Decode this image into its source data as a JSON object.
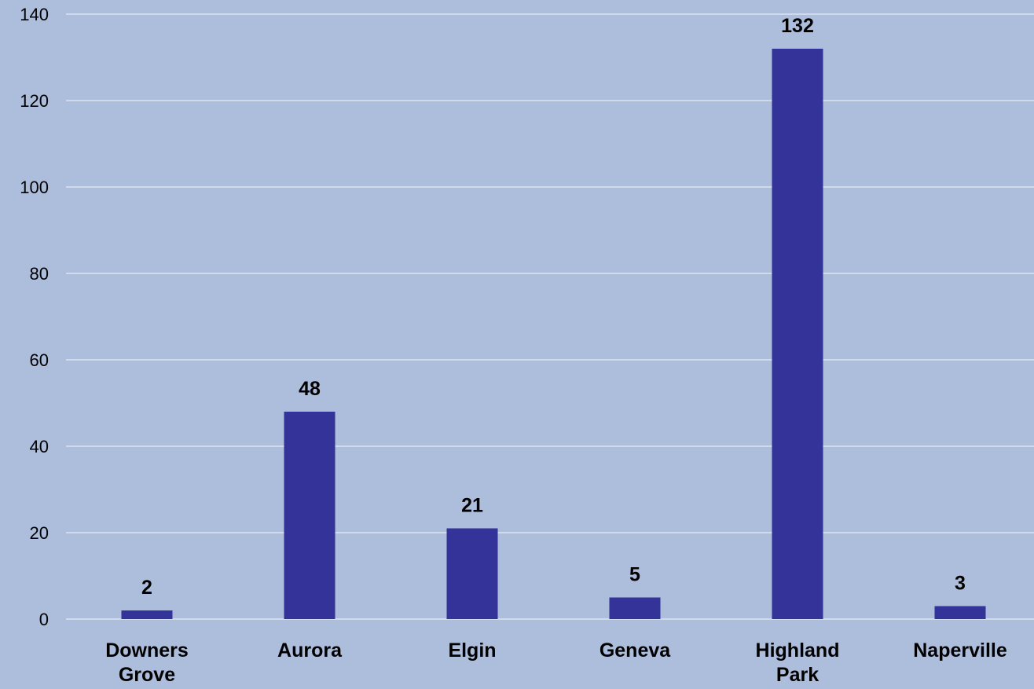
{
  "chart_data": {
    "type": "bar",
    "categories": [
      [
        "Downers",
        "Grove"
      ],
      [
        "Aurora"
      ],
      [
        "Elgin"
      ],
      [
        "Geneva"
      ],
      [
        "Highland",
        "Park"
      ],
      [
        "Naperville"
      ]
    ],
    "values": [
      2,
      48,
      21,
      5,
      132,
      3
    ],
    "value_labels": [
      "2",
      "48",
      "21",
      "5",
      "132",
      "3"
    ],
    "y_ticks": [
      0,
      20,
      40,
      60,
      80,
      100,
      120,
      140
    ],
    "ylim": [
      0,
      140
    ],
    "grid": true,
    "legend": "none",
    "colors": {
      "background": "#adbddc",
      "bar": "#333399",
      "gridline": "#dde4f0"
    }
  }
}
